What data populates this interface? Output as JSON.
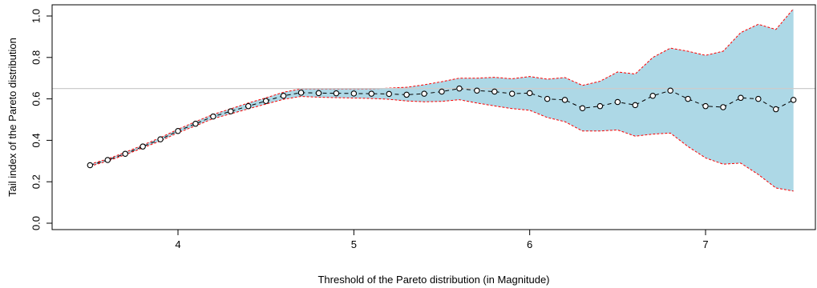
{
  "chart_data": {
    "type": "line",
    "title": "",
    "xlabel": "Threshold of the Pareto distribution (in Magnitude)",
    "ylabel": "Tail index of the Pareto distribution",
    "xlim": [
      3.5,
      7.5
    ],
    "ylim": [
      0.0,
      1.0
    ],
    "x_ticks": [
      4,
      5,
      6,
      7
    ],
    "y_ticks": [
      0.0,
      0.2,
      0.4,
      0.6,
      0.8,
      1.0
    ],
    "x_tick_labels": [
      "4",
      "5",
      "6",
      "7"
    ],
    "y_tick_labels": [
      "0.0",
      "0.2",
      "0.4",
      "0.6",
      "0.8",
      "1.0"
    ],
    "grid": false,
    "reference_line": {
      "y": 0.65,
      "color": "#cccccc"
    },
    "colors": {
      "band": "#add8e6",
      "band_border": "#ff0000",
      "line": "#000000"
    },
    "x": [
      3.5,
      3.6,
      3.7,
      3.8,
      3.9,
      4.0,
      4.1,
      4.2,
      4.3,
      4.4,
      4.5,
      4.6,
      4.7,
      4.8,
      4.9,
      5.0,
      5.1,
      5.2,
      5.3,
      5.4,
      5.5,
      5.6,
      5.7,
      5.8,
      5.9,
      6.0,
      6.1,
      6.2,
      6.3,
      6.4,
      6.5,
      6.6,
      6.7,
      6.8,
      6.9,
      7.0,
      7.1,
      7.2,
      7.3,
      7.4,
      7.5
    ],
    "series": [
      {
        "role": "estimate",
        "values": [
          0.28,
          0.305,
          0.335,
          0.37,
          0.405,
          0.445,
          0.48,
          0.515,
          0.54,
          0.565,
          0.59,
          0.615,
          0.63,
          0.628,
          0.627,
          0.626,
          0.625,
          0.624,
          0.62,
          0.625,
          0.635,
          0.65,
          0.64,
          0.635,
          0.625,
          0.628,
          0.6,
          0.595,
          0.555,
          0.565,
          0.585,
          0.57,
          0.615,
          0.64,
          0.6,
          0.565,
          0.56,
          0.605,
          0.6,
          0.55,
          0.595
        ]
      },
      {
        "role": "upper",
        "values": [
          0.285,
          0.31,
          0.342,
          0.377,
          0.413,
          0.453,
          0.49,
          0.525,
          0.552,
          0.58,
          0.605,
          0.632,
          0.648,
          0.648,
          0.648,
          0.648,
          0.648,
          0.652,
          0.656,
          0.668,
          0.683,
          0.7,
          0.7,
          0.704,
          0.697,
          0.708,
          0.695,
          0.703,
          0.665,
          0.685,
          0.73,
          0.72,
          0.8,
          0.845,
          0.83,
          0.81,
          0.83,
          0.92,
          0.96,
          0.935,
          1.035
        ]
      },
      {
        "role": "lower",
        "values": [
          0.275,
          0.3,
          0.33,
          0.364,
          0.397,
          0.437,
          0.47,
          0.505,
          0.528,
          0.552,
          0.575,
          0.598,
          0.612,
          0.608,
          0.606,
          0.604,
          0.602,
          0.598,
          0.59,
          0.586,
          0.588,
          0.596,
          0.58,
          0.566,
          0.553,
          0.545,
          0.51,
          0.49,
          0.445,
          0.445,
          0.45,
          0.42,
          0.43,
          0.435,
          0.37,
          0.315,
          0.285,
          0.29,
          0.235,
          0.17,
          0.155
        ]
      }
    ]
  }
}
